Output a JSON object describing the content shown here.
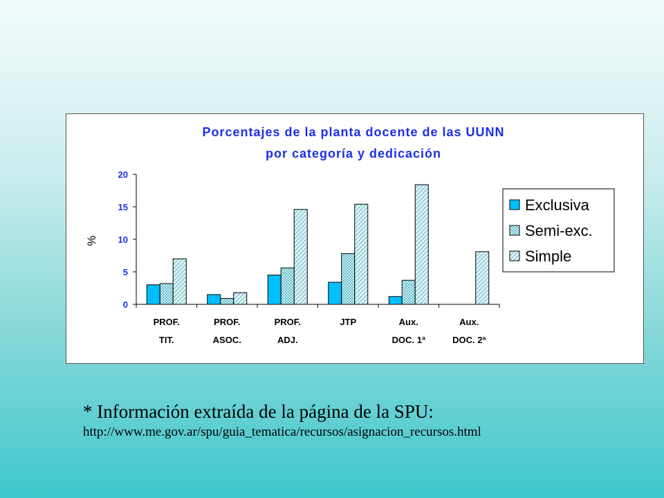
{
  "chart_data": {
    "type": "bar",
    "title_lines": [
      "Porcentajes de la planta docente de las UUNN",
      "por categoría y dedicación"
    ],
    "ylabel": "%",
    "ylim": [
      0,
      20
    ],
    "yticks": [
      "0",
      "5",
      "10",
      "15",
      "20"
    ],
    "categories": [
      [
        "PROF.",
        "TIT."
      ],
      [
        "PROF.",
        "ASOC."
      ],
      [
        "PROF.",
        "ADJ."
      ],
      [
        "JTP",
        ""
      ],
      [
        "Aux.",
        "DOC. 1ª"
      ],
      [
        "Aux.",
        "DOC. 2ª"
      ]
    ],
    "series": [
      {
        "name": "Exclusiva",
        "values": [
          3.0,
          1.5,
          4.5,
          3.4,
          1.2,
          0
        ]
      },
      {
        "name": "Semi-exc.",
        "values": [
          3.2,
          0.9,
          5.6,
          7.8,
          3.7,
          0
        ]
      },
      {
        "name": "Simple",
        "values": [
          7.0,
          1.8,
          14.6,
          15.4,
          18.4,
          8.1
        ]
      }
    ],
    "colors": {
      "Exclusiva": "#00bfff",
      "Semi-exc.": "#a5e8f0",
      "Simple": "#d8f6fa"
    },
    "legend_position": "right",
    "grid": false
  },
  "note": {
    "line1": "* Información extraída de la página de la SPU:",
    "line2": "http://www.me.gov.ar/spu/guia_tematica/recursos/asignacion_recursos.html"
  }
}
